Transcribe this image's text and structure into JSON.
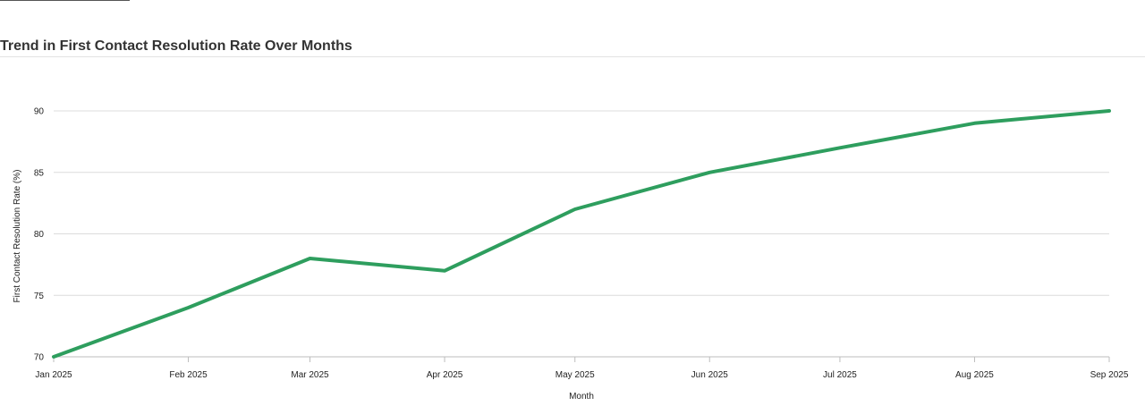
{
  "chart_data": {
    "type": "line",
    "title": "Trend in First Contact Resolution Rate Over Months",
    "xlabel": "Month",
    "ylabel": "First Contact Resolution Rate (%)",
    "categories": [
      "Jan 2025",
      "Feb 2025",
      "Mar 2025",
      "Apr 2025",
      "May 2025",
      "Jun 2025",
      "Jul 2025",
      "Aug 2025",
      "Sep 2025"
    ],
    "dates": [
      "2025-01-01",
      "2025-02-01",
      "2025-03-01",
      "2025-04-01",
      "2025-05-01",
      "2025-06-01",
      "2025-07-01",
      "2025-08-01",
      "2025-09-01"
    ],
    "series": [
      {
        "values": [
          70,
          74,
          78,
          77,
          82,
          85,
          87,
          89,
          90
        ]
      }
    ],
    "yticks": [
      70,
      75,
      80,
      85,
      90
    ],
    "ylim": [
      70,
      92
    ],
    "grid": true,
    "line_color": "#2e9e5e"
  }
}
